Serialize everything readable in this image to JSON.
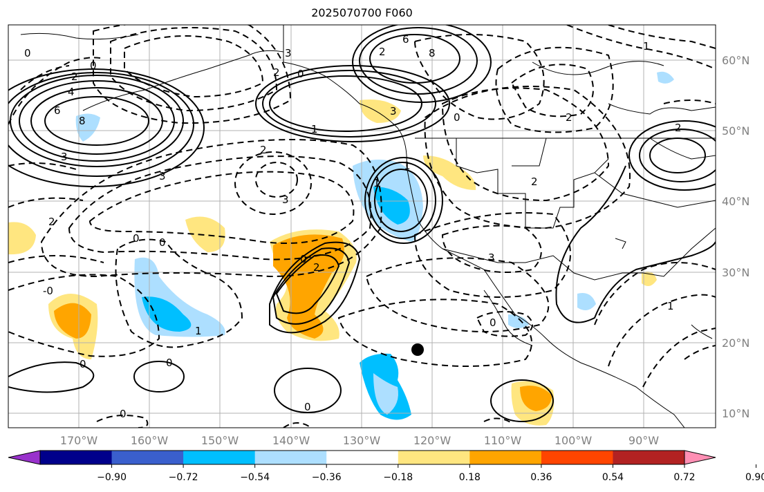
{
  "title": "2025070700 F060",
  "lon_labels": [
    "170°W",
    "160°W",
    "150°W",
    "140°W",
    "130°W",
    "120°W",
    "110°W",
    "100°W",
    "90°W"
  ],
  "lat_labels": [
    "60°N",
    "50°N",
    "40°N",
    "30°N",
    "20°N",
    "10°N"
  ],
  "colorbar": {
    "labels": [
      "−0.90",
      "−0.72",
      "−0.54",
      "−0.36",
      "−0.18",
      "0.18",
      "0.36",
      "0.54",
      "0.72",
      "0.90"
    ],
    "colors": [
      "#9932CC",
      "#00008B",
      "#3A5FCD",
      "#00BFFF",
      "#ADDFFF",
      "#FFFFFF",
      "#FFE680",
      "#FFA500",
      "#FF4500",
      "#B22222",
      "#FF8FB4"
    ]
  },
  "contour_labels": [
    "0",
    "2",
    "4",
    "6",
    "8",
    "0",
    "3",
    "-0",
    "3",
    "8",
    "6",
    "2",
    "2",
    "0",
    "3",
    "2",
    "1",
    "3",
    "2",
    "0",
    "3",
    "0",
    "0",
    "1",
    "2",
    "0",
    "0",
    "1",
    "0",
    "0",
    "1",
    "2",
    "0",
    "0",
    "3",
    "2",
    "1",
    "1",
    "2"
  ],
  "marker": "storm-center-dot"
}
